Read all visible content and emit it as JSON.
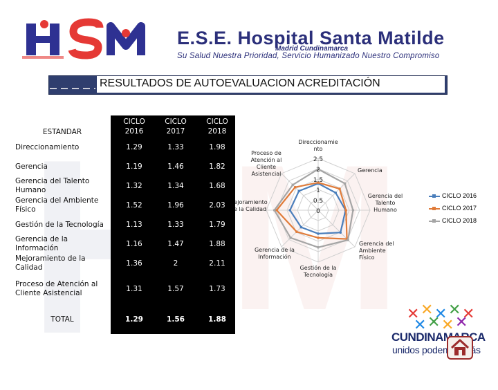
{
  "header": {
    "logo_text": "HSM",
    "org_name": "E.S.E. Hospital Santa Matilde",
    "location": "Madrid Cundinamarca",
    "slogan": "Su Salud Nuestra Prioridad, Servicio Humanizado Nuestro Compromiso"
  },
  "title": "RESULTADOS DE AUTOEVALUACION ACREDITACIÓN",
  "table": {
    "col_standard": "ESTANDAR",
    "cols": [
      "CICLO 2016",
      "CICLO 2017",
      "CICLO 2018"
    ],
    "rows": [
      {
        "label": "Direccionamiento",
        "values": [
          "1.29",
          "1.33",
          "1.98"
        ]
      },
      {
        "label": "Gerencia",
        "values": [
          "1.19",
          "1.46",
          "1.82"
        ]
      },
      {
        "label": "Gerencia del Talento Humano",
        "values": [
          "1.32",
          "1.34",
          "1.68"
        ]
      },
      {
        "label": "Gerencia del Ambiente Físico",
        "values": [
          "1.52",
          "1.96",
          "2.03"
        ]
      },
      {
        "label": "Gestión de la Tecnología",
        "values": [
          "1.13",
          "1.33",
          "1.79"
        ]
      },
      {
        "label": "Gerencia de la Información",
        "values": [
          "1.16",
          "1.47",
          "1.88"
        ]
      },
      {
        "label": "Mejoramiento de la Calidad",
        "values": [
          "1.36",
          "2",
          "2.11"
        ]
      },
      {
        "label": "Proceso de Atención al Cliente Asistencial",
        "values": [
          "1.31",
          "1.57",
          "1.73"
        ]
      }
    ],
    "total": {
      "label": "TOTAL",
      "values": [
        "1.29",
        "1.56",
        "1.88"
      ]
    }
  },
  "chart_data": {
    "type": "radar",
    "axes": [
      "Direccionamiento",
      "Gerencia",
      "Gerencia del Talento Humano",
      "Gerencia del Ambiente Físico",
      "Gestión de la Tecnología",
      "Gerencia de la Información",
      "Mejoramiento de la Calidad",
      "Proceso de Atención al Cliente Asistencial"
    ],
    "axis_labels": [
      "Direccionamiento",
      "Gerencia",
      "Gerencia del Talento Humano",
      "Gerencia del Ambiente Físico",
      "Gestión de la Tecnología",
      "Gerencia de la Información",
      "Mejoramiento de la Calidad",
      "Proceso de Atención al Cliente Asistencial"
    ],
    "series": [
      {
        "name": "CICLO 2016",
        "color": "#4a7ebb",
        "values": [
          1.29,
          1.19,
          1.32,
          1.52,
          1.13,
          1.16,
          1.36,
          1.31
        ]
      },
      {
        "name": "CICLO 2017",
        "color": "#e07b39",
        "values": [
          1.33,
          1.46,
          1.34,
          1.96,
          1.33,
          1.47,
          2,
          1.57
        ]
      },
      {
        "name": "CICLO 2018",
        "color": "#a5a5a5",
        "values": [
          1.98,
          1.82,
          1.68,
          2.03,
          1.79,
          1.88,
          2.11,
          1.73
        ]
      }
    ],
    "rlim": [
      0,
      2.5
    ],
    "ticks": [
      "0",
      "0.5",
      "1",
      "1.5",
      "2",
      "2.5"
    ],
    "legend_position": "right"
  },
  "footer": {
    "brand": "CUNDINAMARCA",
    "tagline": "unidos podemos más",
    "home_icon": "home-icon"
  }
}
